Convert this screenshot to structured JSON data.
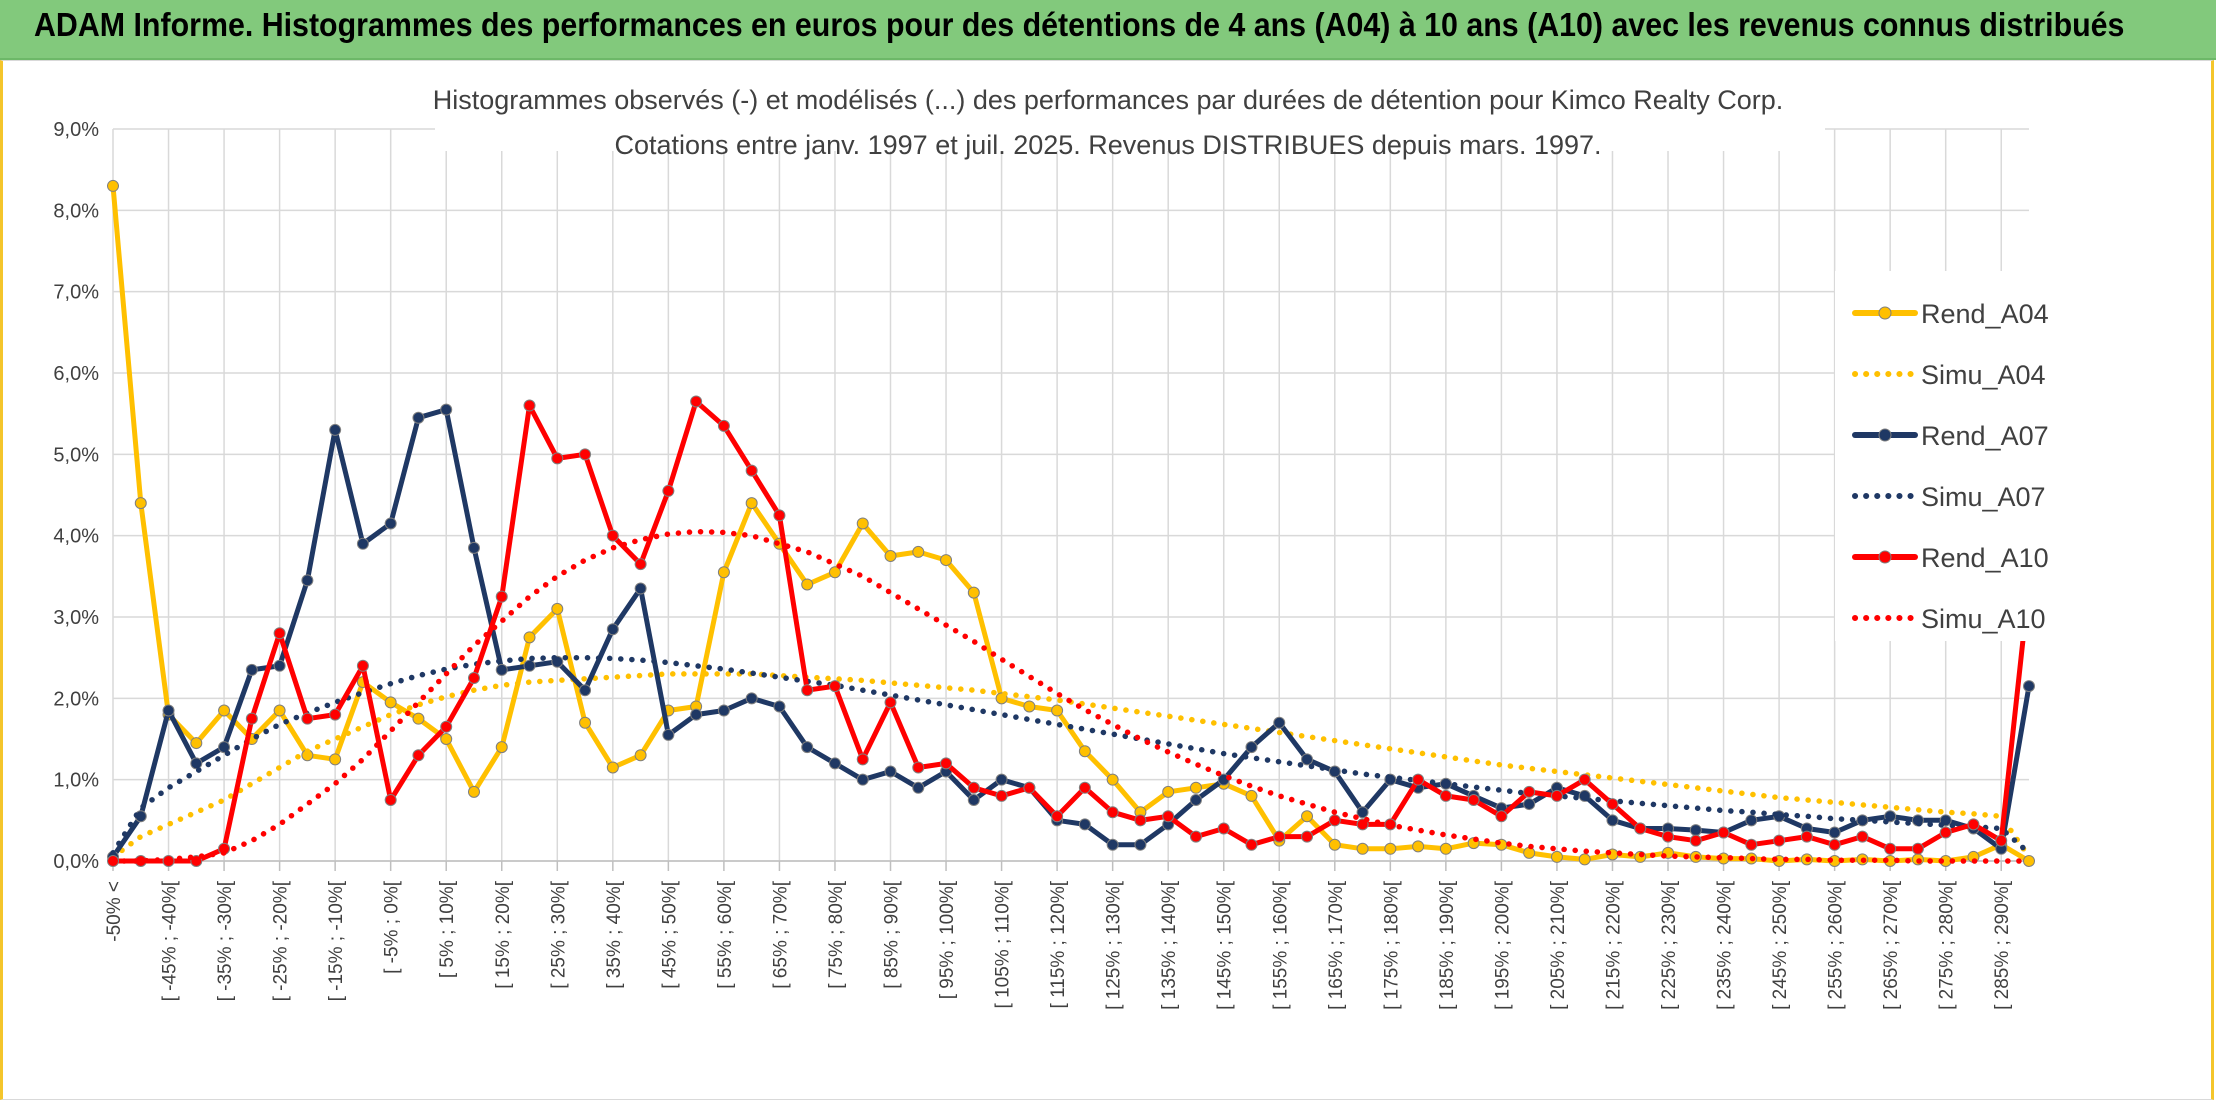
{
  "header": {
    "title": "ADAM Informe. Histogrammes des performances en euros pour des détentions de 4 ans (A04) à 10 ans (A10) avec les revenus connus distribués"
  },
  "colors": {
    "header_bg": "#82c97c",
    "A04": "#ffc000",
    "A07": "#1f3864",
    "A10": "#ff0000"
  },
  "chart_data": {
    "type": "line",
    "title_line1": "Histogrammes observés (-) et modélisés (...) des performances par durées de détention pour Kimco Realty Corp.",
    "title_line2": "Cotations entre janv. 1997 et juil. 2025. Revenus DISTRIBUES depuis mars. 1997.",
    "ylim": [
      0,
      9
    ],
    "yticks": [
      "0,0%",
      "1,0%",
      "2,0%",
      "3,0%",
      "4,0%",
      "5,0%",
      "6,0%",
      "7,0%",
      "8,0%",
      "9,0%"
    ],
    "grid": true,
    "legend_position": "right",
    "x_labels": [
      {
        "i": 0,
        "label": "-50% <"
      },
      {
        "i": 2,
        "label": "[ -45% ; -40%["
      },
      {
        "i": 4,
        "label": "[ -35% ; -30%["
      },
      {
        "i": 6,
        "label": "[ -25% ; -20%["
      },
      {
        "i": 8,
        "label": "[ -15% ; -10%["
      },
      {
        "i": 10,
        "label": "[ -5% ; 0%["
      },
      {
        "i": 12,
        "label": "[ 5% ; 10%["
      },
      {
        "i": 14,
        "label": "[ 15% ; 20%["
      },
      {
        "i": 16,
        "label": "[ 25% ; 30%["
      },
      {
        "i": 18,
        "label": "[ 35% ; 40%["
      },
      {
        "i": 20,
        "label": "[ 45% ; 50%["
      },
      {
        "i": 22,
        "label": "[ 55% ; 60%["
      },
      {
        "i": 24,
        "label": "[ 65% ; 70%["
      },
      {
        "i": 26,
        "label": "[ 75% ; 80%["
      },
      {
        "i": 28,
        "label": "[ 85% ; 90%["
      },
      {
        "i": 30,
        "label": "[ 95% ; 100%["
      },
      {
        "i": 32,
        "label": "[ 105% ; 110%["
      },
      {
        "i": 34,
        "label": "[ 115% ; 120%["
      },
      {
        "i": 36,
        "label": "[ 125% ; 130%["
      },
      {
        "i": 38,
        "label": "[ 135% ; 140%["
      },
      {
        "i": 40,
        "label": "[ 145% ; 150%["
      },
      {
        "i": 42,
        "label": "[ 155% ; 160%["
      },
      {
        "i": 44,
        "label": "[ 165% ; 170%["
      },
      {
        "i": 46,
        "label": "[ 175% ; 180%["
      },
      {
        "i": 48,
        "label": "[ 185% ; 190%["
      },
      {
        "i": 50,
        "label": "[ 195% ; 200%["
      },
      {
        "i": 52,
        "label": "[ 205% ; 210%["
      },
      {
        "i": 54,
        "label": "[ 215% ; 220%["
      },
      {
        "i": 56,
        "label": "[ 225% ; 230%["
      },
      {
        "i": 58,
        "label": "[ 235% ; 240%["
      },
      {
        "i": 60,
        "label": "[ 245% ; 250%["
      },
      {
        "i": 62,
        "label": "[ 255% ; 260%["
      },
      {
        "i": 64,
        "label": "[ 265% ; 270%["
      },
      {
        "i": 66,
        "label": "[ 275% ; 280%["
      },
      {
        "i": 68,
        "label": "[ 285% ; 290%["
      }
    ],
    "n_points": 70,
    "series": [
      {
        "name": "Rend_A04",
        "style": "solid",
        "color": "#ffc000",
        "values": [
          8.3,
          4.4,
          1.8,
          1.45,
          1.85,
          1.5,
          1.85,
          1.3,
          1.25,
          2.2,
          1.95,
          1.75,
          1.5,
          0.85,
          1.4,
          2.75,
          3.1,
          1.7,
          1.15,
          1.3,
          1.85,
          1.9,
          3.55,
          4.4,
          3.9,
          3.4,
          3.55,
          4.15,
          3.75,
          3.8,
          3.7,
          3.3,
          2.0,
          1.9,
          1.85,
          1.35,
          1.0,
          0.6,
          0.85,
          0.9,
          0.95,
          0.8,
          0.25,
          0.55,
          0.2,
          0.15,
          0.15,
          0.18,
          0.15,
          0.22,
          0.2,
          0.1,
          0.05,
          0.02,
          0.08,
          0.05,
          0.1,
          0.05,
          0.03,
          0.03,
          0.0,
          0.02,
          0.0,
          0.02,
          0.0,
          0.02,
          0.0,
          0.05,
          0.2,
          0.0
        ]
      },
      {
        "name": "Simu_A04",
        "style": "dotted",
        "color": "#ffc000",
        "values": [
          0.05,
          0.3,
          0.45,
          0.6,
          0.75,
          0.95,
          1.15,
          1.35,
          1.5,
          1.65,
          1.8,
          1.92,
          2.02,
          2.1,
          2.16,
          2.2,
          2.22,
          2.24,
          2.26,
          2.28,
          2.3,
          2.3,
          2.3,
          2.3,
          2.28,
          2.26,
          2.24,
          2.22,
          2.19,
          2.16,
          2.13,
          2.1,
          2.06,
          2.02,
          1.98,
          1.93,
          1.88,
          1.83,
          1.78,
          1.73,
          1.68,
          1.63,
          1.58,
          1.53,
          1.48,
          1.43,
          1.38,
          1.33,
          1.28,
          1.23,
          1.18,
          1.14,
          1.1,
          1.06,
          1.02,
          0.98,
          0.94,
          0.9,
          0.86,
          0.82,
          0.78,
          0.75,
          0.72,
          0.69,
          0.66,
          0.63,
          0.6,
          0.58,
          0.55,
          0.05
        ]
      },
      {
        "name": "Rend_A07",
        "style": "solid",
        "color": "#1f3864",
        "values": [
          0.05,
          0.55,
          1.85,
          1.2,
          1.4,
          2.35,
          2.4,
          3.45,
          5.3,
          3.9,
          4.15,
          5.45,
          5.55,
          3.85,
          2.35,
          2.4,
          2.45,
          2.1,
          2.85,
          3.35,
          1.55,
          1.8,
          1.85,
          2.0,
          1.9,
          1.4,
          1.2,
          1.0,
          1.1,
          0.9,
          1.1,
          0.75,
          1.0,
          0.9,
          0.5,
          0.45,
          0.2,
          0.2,
          0.45,
          0.75,
          1.0,
          1.4,
          1.7,
          1.25,
          1.1,
          0.6,
          1.0,
          0.9,
          0.95,
          0.8,
          0.65,
          0.7,
          0.9,
          0.8,
          0.5,
          0.4,
          0.4,
          0.38,
          0.35,
          0.5,
          0.55,
          0.4,
          0.35,
          0.5,
          0.55,
          0.5,
          0.5,
          0.4,
          0.15,
          2.15
        ]
      },
      {
        "name": "Simu_A07",
        "style": "dotted",
        "color": "#1f3864",
        "values": [
          0.1,
          0.65,
          0.9,
          1.1,
          1.3,
          1.5,
          1.68,
          1.82,
          1.95,
          2.07,
          2.18,
          2.28,
          2.36,
          2.42,
          2.46,
          2.49,
          2.5,
          2.5,
          2.49,
          2.47,
          2.44,
          2.4,
          2.36,
          2.31,
          2.26,
          2.21,
          2.16,
          2.1,
          2.04,
          1.98,
          1.92,
          1.86,
          1.8,
          1.74,
          1.68,
          1.62,
          1.56,
          1.5,
          1.44,
          1.38,
          1.32,
          1.27,
          1.22,
          1.17,
          1.12,
          1.07,
          1.03,
          0.99,
          0.95,
          0.91,
          0.87,
          0.83,
          0.8,
          0.77,
          0.74,
          0.71,
          0.68,
          0.65,
          0.62,
          0.6,
          0.57,
          0.55,
          0.52,
          0.5,
          0.48,
          0.46,
          0.44,
          0.42,
          0.4,
          0.1
        ]
      },
      {
        "name": "Rend_A10",
        "style": "solid",
        "color": "#ff0000",
        "values": [
          0.0,
          0.0,
          0.0,
          0.0,
          0.15,
          1.75,
          2.8,
          1.75,
          1.8,
          2.4,
          0.75,
          1.3,
          1.65,
          2.25,
          3.25,
          5.6,
          4.95,
          5.0,
          4.0,
          3.65,
          4.55,
          5.65,
          5.35,
          4.8,
          4.25,
          2.1,
          2.15,
          1.25,
          1.95,
          1.15,
          1.2,
          0.9,
          0.8,
          0.9,
          0.55,
          0.9,
          0.6,
          0.5,
          0.55,
          0.3,
          0.4,
          0.2,
          0.3,
          0.3,
          0.5,
          0.45,
          0.45,
          1.0,
          0.8,
          0.75,
          0.55,
          0.85,
          0.8,
          1.0,
          0.7,
          0.4,
          0.3,
          0.25,
          0.35,
          0.2,
          0.25,
          0.3,
          0.2,
          0.3,
          0.15,
          0.15,
          0.35,
          0.45,
          0.25,
          3.4
        ]
      },
      {
        "name": "Simu_A10",
        "style": "dotted",
        "color": "#ff0000",
        "values": [
          0.0,
          0.0,
          0.02,
          0.05,
          0.1,
          0.25,
          0.45,
          0.7,
          0.95,
          1.25,
          1.6,
          1.95,
          2.3,
          2.65,
          2.95,
          3.25,
          3.5,
          3.7,
          3.85,
          3.95,
          4.02,
          4.05,
          4.04,
          4.0,
          3.9,
          3.8,
          3.65,
          3.5,
          3.3,
          3.1,
          2.9,
          2.7,
          2.48,
          2.27,
          2.06,
          1.86,
          1.68,
          1.5,
          1.34,
          1.19,
          1.05,
          0.92,
          0.8,
          0.7,
          0.6,
          0.52,
          0.44,
          0.38,
          0.32,
          0.27,
          0.22,
          0.18,
          0.15,
          0.12,
          0.1,
          0.08,
          0.06,
          0.05,
          0.04,
          0.03,
          0.02,
          0.02,
          0.01,
          0.01,
          0.01,
          0.0,
          0.0,
          0.0,
          0.0,
          0.0
        ]
      }
    ]
  }
}
